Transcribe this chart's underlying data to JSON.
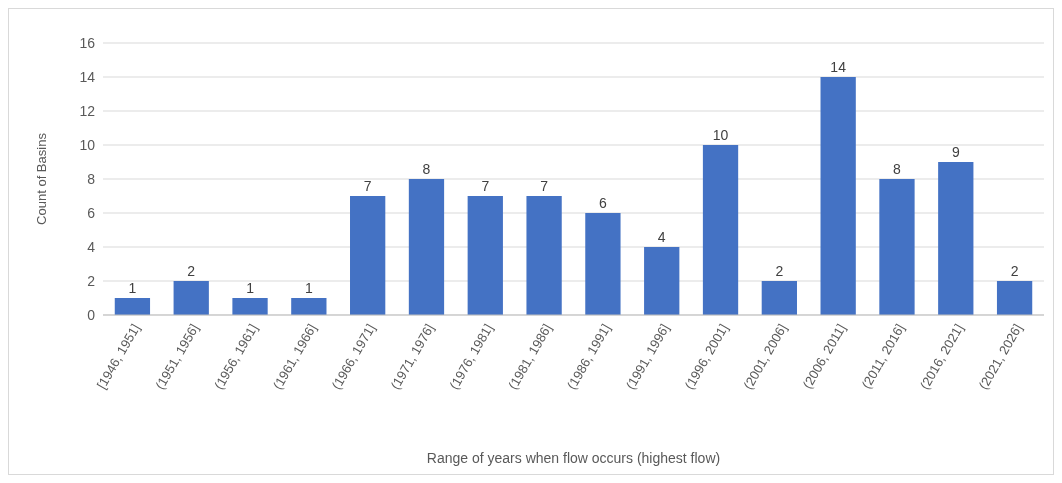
{
  "chart_data": {
    "type": "bar",
    "xlabel": "Range of years when flow occurs (highest flow)",
    "ylabel": "Count of Basins",
    "categories": [
      "[1946, 1951]",
      "(1951, 1956]",
      "(1956, 1961]",
      "(1961, 1966]",
      "(1966, 1971]",
      "(1971, 1976]",
      "(1976, 1981]",
      "(1981, 1986]",
      "(1986, 1991]",
      "(1991, 1996]",
      "(1996, 2001]",
      "(2001, 2006]",
      "(2006, 2011]",
      "(2011, 2016]",
      "(2016, 2021]",
      "(2021, 2026]"
    ],
    "values": [
      1,
      2,
      1,
      1,
      7,
      8,
      7,
      7,
      6,
      4,
      10,
      2,
      14,
      8,
      9,
      2
    ],
    "color": "#4472c4",
    "ylim": [
      0,
      16
    ],
    "yticks": [
      0,
      2,
      4,
      6,
      8,
      10,
      12,
      14,
      16
    ],
    "grid": "y",
    "data_labels": true
  }
}
